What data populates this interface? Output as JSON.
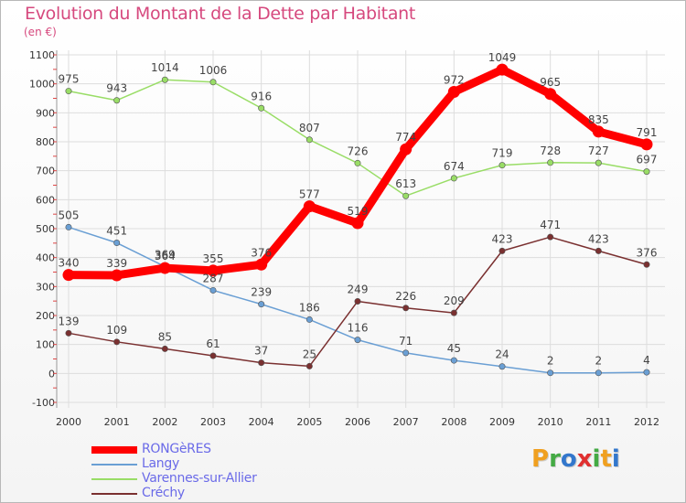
{
  "header": {
    "title": "Evolution du Montant de la Dette par Habitant",
    "subtitle": "(en €)"
  },
  "logo": {
    "text": "Proxiti",
    "colors": [
      "#f0a020",
      "#44aa44",
      "#3377cc",
      "#e03030",
      "#44aa44",
      "#f0a020",
      "#3377cc"
    ]
  },
  "chart_data": {
    "type": "line",
    "title": "Evolution du Montant de la Dette par Habitant",
    "subtitle": "(en €)",
    "xlabel": "",
    "ylabel": "",
    "x": [
      "2000",
      "2001",
      "2002",
      "2003",
      "2004",
      "2005",
      "2006",
      "2007",
      "2008",
      "2009",
      "2010",
      "2011",
      "2012"
    ],
    "ylim": [
      -100,
      1100
    ],
    "yticks": [
      "-100",
      "0",
      "100",
      "200",
      "300",
      "400",
      "500",
      "600",
      "700",
      "800",
      "900",
      "1000",
      "1100"
    ],
    "grid": true,
    "legend_position": "bottom-left",
    "series": [
      {
        "name": "RONGèRES",
        "color": "#ff0000",
        "values": [
          340,
          339,
          364,
          355,
          376,
          577,
          519,
          774,
          972,
          1049,
          965,
          835,
          791
        ],
        "labels": [
          "340",
          "339",
          "364",
          "355",
          "376",
          "577",
          "519",
          "774",
          "972",
          "1049",
          "965",
          "835",
          "791"
        ]
      },
      {
        "name": "Langy",
        "color": "#6a9fd4",
        "values": [
          505,
          451,
          369,
          287,
          239,
          186,
          116,
          71,
          45,
          24,
          2,
          2,
          4
        ],
        "labels": [
          "505",
          "451",
          "369",
          "287",
          "239",
          "186",
          "116",
          "71",
          "45",
          "24",
          "2",
          "2",
          "4"
        ]
      },
      {
        "name": "Varennes-sur-Allier",
        "color": "#99dd66",
        "values": [
          975,
          943,
          1014,
          1006,
          916,
          807,
          726,
          613,
          674,
          719,
          728,
          727,
          697
        ],
        "labels": [
          "975",
          "943",
          "1014",
          "1006",
          "916",
          "807",
          "726",
          "613",
          "674",
          "719",
          "728",
          "727",
          "697"
        ]
      },
      {
        "name": "Créchy",
        "color": "#7a3030",
        "values": [
          139,
          109,
          85,
          61,
          37,
          25,
          249,
          226,
          209,
          423,
          471,
          423,
          376
        ],
        "labels": [
          "139",
          "109",
          "85",
          "61",
          "37",
          "25",
          "249",
          "226",
          "209",
          "423",
          "471",
          "423",
          "376"
        ]
      }
    ]
  }
}
